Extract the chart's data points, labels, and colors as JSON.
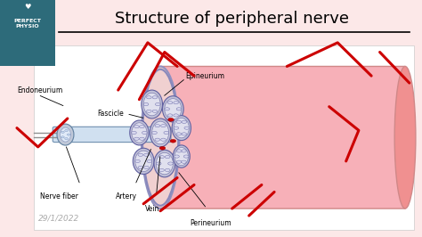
{
  "title": "Structure of peripheral nerve",
  "bg_color": "#fce8e8",
  "top_bar_color": "#2d6b7a",
  "logo_text": "PERFECT\nPHYSIO",
  "date_text": "29/1/2022",
  "red_color": "#cc0000"
}
